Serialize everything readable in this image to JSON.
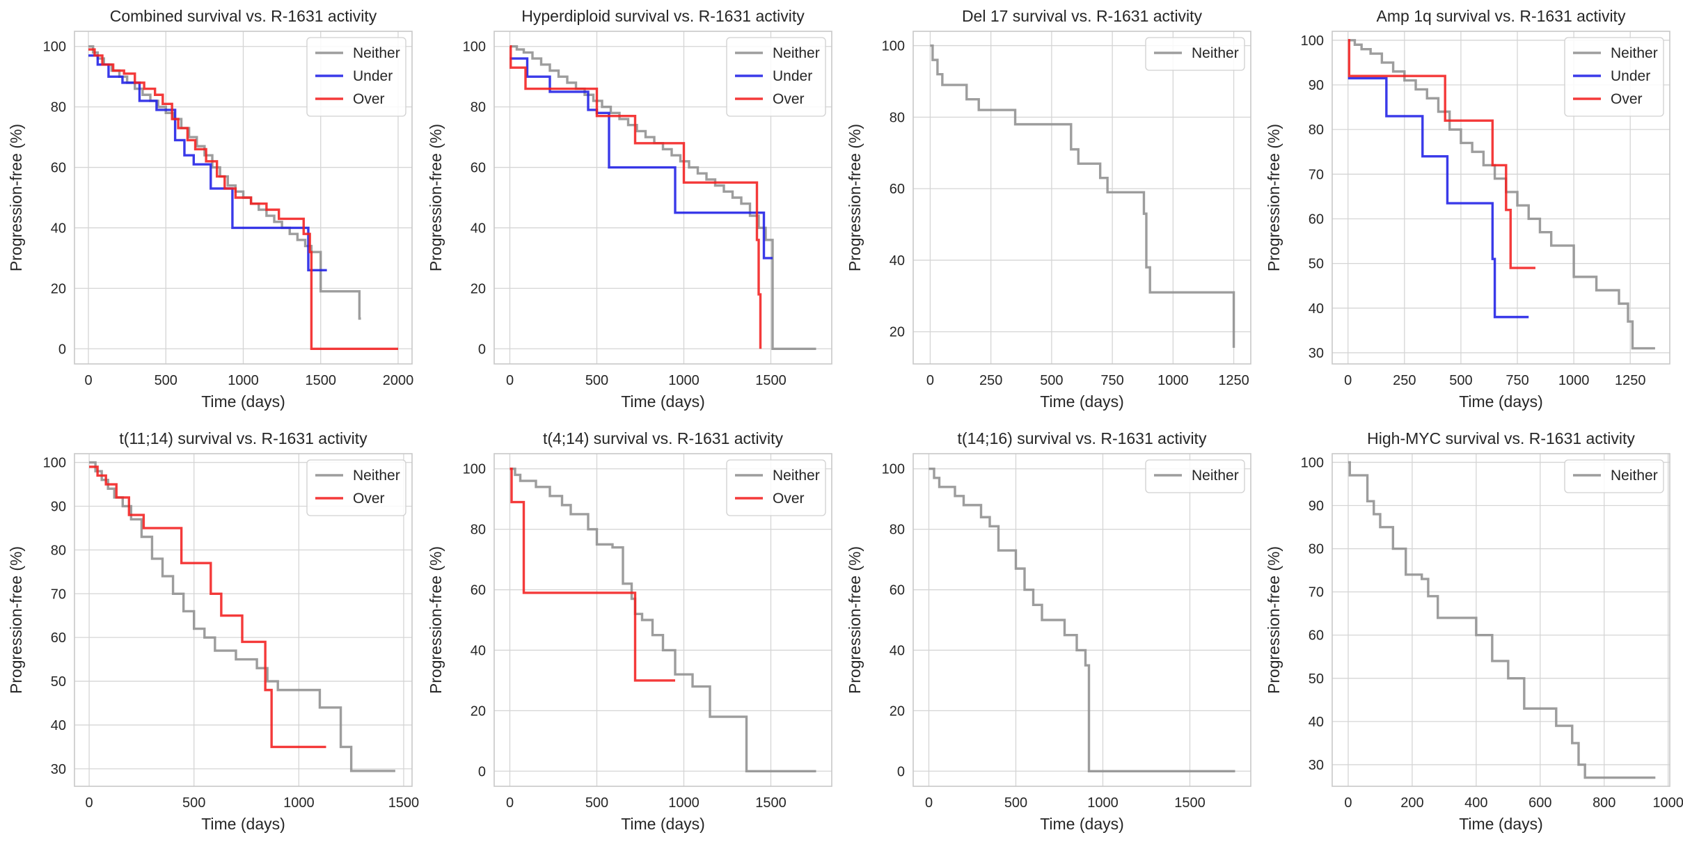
{
  "colors": {
    "neither": "#8f8f8f",
    "under": "#1f1fe6",
    "over": "#f21f1f",
    "grid": "#d5d5d5",
    "frame": "#c8c8c8"
  },
  "chart_data": [
    {
      "type": "line",
      "step": true,
      "title": "Combined survival vs. R-1631 activity",
      "xlabel": "Time (days)",
      "ylabel": "Progression-free (%)",
      "xlim": [
        -90,
        2090
      ],
      "ylim": [
        -5,
        105
      ],
      "xticks": [
        0,
        500,
        1000,
        1500,
        2000
      ],
      "yticks": [
        0,
        20,
        40,
        60,
        80,
        100
      ],
      "legend": "top-right",
      "series": [
        {
          "name": "Neither",
          "color": "#8f8f8f",
          "x": [
            0,
            30,
            60,
            100,
            150,
            200,
            250,
            300,
            350,
            400,
            450,
            500,
            550,
            600,
            650,
            700,
            750,
            800,
            850,
            900,
            950,
            1000,
            1050,
            1100,
            1150,
            1200,
            1250,
            1300,
            1350,
            1400,
            1440,
            1500,
            1600,
            1700,
            1750,
            1760
          ],
          "y": [
            100,
            98,
            96,
            94,
            92,
            90,
            88,
            86,
            84,
            82,
            80,
            78,
            76,
            73,
            70,
            67,
            64,
            60,
            57,
            54,
            52,
            50,
            48,
            46,
            44,
            42,
            40,
            38,
            36,
            34,
            32,
            19,
            19,
            19,
            10,
            10
          ]
        },
        {
          "name": "Under",
          "color": "#1f1fe6",
          "x": [
            0,
            60,
            130,
            220,
            330,
            440,
            560,
            620,
            680,
            790,
            930,
            1100,
            1200,
            1300,
            1420,
            1540
          ],
          "y": [
            97,
            94,
            90,
            88,
            82,
            79,
            69,
            64,
            61,
            53,
            40,
            40,
            40,
            40,
            26,
            26
          ]
        },
        {
          "name": "Over",
          "color": "#f21f1f",
          "x": [
            0,
            40,
            90,
            160,
            230,
            300,
            360,
            430,
            480,
            540,
            580,
            640,
            690,
            760,
            830,
            880,
            950,
            1050,
            1150,
            1230,
            1390,
            1430,
            1440,
            1600,
            1800,
            2000
          ],
          "y": [
            99,
            97,
            94,
            92,
            91,
            88,
            86,
            84,
            81,
            76,
            73,
            69,
            66,
            62,
            57,
            53,
            50,
            48,
            46,
            43,
            38,
            32,
            0,
            0,
            0,
            0
          ]
        }
      ]
    },
    {
      "type": "line",
      "step": true,
      "title": "Hyperdiploid survival vs. R-1631 activity",
      "xlabel": "Time (days)",
      "ylabel": "Progression-free (%)",
      "xlim": [
        -90,
        1850
      ],
      "ylim": [
        -5,
        105
      ],
      "xticks": [
        0,
        500,
        1000,
        1500
      ],
      "yticks": [
        0,
        20,
        40,
        60,
        80,
        100
      ],
      "legend": "top-right",
      "series": [
        {
          "name": "Neither",
          "color": "#8f8f8f",
          "x": [
            0,
            40,
            80,
            130,
            180,
            230,
            280,
            330,
            380,
            430,
            480,
            530,
            580,
            630,
            680,
            730,
            780,
            830,
            880,
            930,
            980,
            1030,
            1080,
            1130,
            1180,
            1230,
            1280,
            1330,
            1380,
            1430,
            1470,
            1510,
            1760
          ],
          "y": [
            100,
            99,
            98,
            96,
            94,
            92,
            90,
            88,
            86,
            84,
            82,
            80,
            78,
            76,
            74,
            72,
            70,
            68,
            66,
            64,
            62,
            60,
            58,
            56,
            54,
            52,
            50,
            48,
            44,
            40,
            36,
            0,
            0
          ]
        },
        {
          "name": "Under",
          "color": "#1f1fe6",
          "x": [
            0,
            100,
            230,
            450,
            500,
            570,
            800,
            950,
            1100,
            1250,
            1460,
            1510
          ],
          "y": [
            96,
            90,
            85,
            79,
            78,
            60,
            60,
            45,
            45,
            45,
            30,
            30
          ]
        },
        {
          "name": "Over",
          "color": "#f21f1f",
          "x": [
            0,
            5,
            90,
            430,
            500,
            720,
            1000,
            1230,
            1420,
            1430,
            1440
          ],
          "y": [
            100,
            93,
            86,
            86,
            77,
            68,
            55,
            55,
            36,
            18,
            0
          ]
        }
      ]
    },
    {
      "type": "line",
      "step": true,
      "title": "Del 17 survival vs. R-1631 activity",
      "xlabel": "Time (days)",
      "ylabel": "Progression-free (%)",
      "xlim": [
        -70,
        1320
      ],
      "ylim": [
        11,
        104
      ],
      "xticks": [
        0,
        250,
        500,
        750,
        1000,
        1250
      ],
      "yticks": [
        20,
        40,
        60,
        80,
        100
      ],
      "legend": "top-right",
      "series": [
        {
          "name": "Neither",
          "color": "#8f8f8f",
          "x": [
            0,
            10,
            30,
            50,
            150,
            200,
            350,
            580,
            610,
            700,
            730,
            880,
            890,
            905,
            1250
          ],
          "y": [
            100,
            96,
            92,
            89,
            85,
            82,
            78,
            71,
            67,
            63,
            59,
            53,
            38,
            31,
            15.5
          ]
        }
      ]
    },
    {
      "type": "line",
      "step": true,
      "title": "Amp 1q survival vs. R-1631 activity",
      "xlabel": "Time (days)",
      "ylabel": "Progression-free (%)",
      "xlim": [
        -70,
        1425
      ],
      "ylim": [
        27.5,
        102
      ],
      "xticks": [
        0,
        250,
        500,
        750,
        1000,
        1250
      ],
      "yticks": [
        30,
        40,
        50,
        60,
        70,
        80,
        90,
        100
      ],
      "legend": "top-right",
      "series": [
        {
          "name": "Neither",
          "color": "#8f8f8f",
          "x": [
            0,
            30,
            60,
            100,
            150,
            200,
            250,
            300,
            350,
            400,
            450,
            500,
            550,
            600,
            650,
            700,
            750,
            800,
            850,
            900,
            1000,
            1100,
            1200,
            1240,
            1260,
            1360
          ],
          "y": [
            100,
            99,
            98,
            97,
            95,
            93,
            91,
            89,
            87,
            84,
            80,
            77,
            75,
            72,
            69,
            66,
            63,
            60,
            57,
            54,
            47,
            44,
            41,
            37,
            31,
            31
          ]
        },
        {
          "name": "Under",
          "color": "#1f1fe6",
          "x": [
            0,
            170,
            330,
            440,
            640,
            650,
            800
          ],
          "y": [
            91.5,
            83,
            74,
            63.5,
            51,
            38,
            38
          ]
        },
        {
          "name": "Over",
          "color": "#f21f1f",
          "x": [
            0,
            5,
            430,
            640,
            700,
            720,
            830
          ],
          "y": [
            100,
            92,
            82,
            72,
            62,
            49,
            49
          ]
        }
      ]
    },
    {
      "type": "line",
      "step": true,
      "title": "t(11;14) survival vs. R-1631 activity",
      "xlabel": "Time (days)",
      "ylabel": "Progression-free (%)",
      "xlim": [
        -70,
        1540
      ],
      "ylim": [
        26,
        102
      ],
      "xticks": [
        0,
        500,
        1000,
        1500
      ],
      "yticks": [
        30,
        40,
        50,
        60,
        70,
        80,
        90,
        100
      ],
      "legend": "top-right",
      "series": [
        {
          "name": "Neither",
          "color": "#8f8f8f",
          "x": [
            0,
            30,
            60,
            90,
            120,
            160,
            200,
            250,
            300,
            350,
            400,
            450,
            500,
            550,
            600,
            700,
            800,
            850,
            900,
            1100,
            1200,
            1250,
            1460
          ],
          "y": [
            100,
            98,
            96,
            94,
            92,
            90,
            87,
            83,
            78,
            74,
            70,
            66,
            62,
            60,
            57,
            55,
            53,
            50,
            48,
            44,
            35,
            29.5,
            29.5
          ]
        },
        {
          "name": "Over",
          "color": "#f21f1f",
          "x": [
            0,
            40,
            80,
            130,
            190,
            260,
            440,
            580,
            630,
            730,
            840,
            870,
            1130
          ],
          "y": [
            99,
            97,
            95,
            92,
            88,
            85,
            77,
            70,
            65,
            59,
            48,
            35,
            35
          ]
        }
      ]
    },
    {
      "type": "line",
      "step": true,
      "title": "t(4;14) survival vs. R-1631 activity",
      "xlabel": "Time (days)",
      "ylabel": "Progression-free (%)",
      "xlim": [
        -90,
        1850
      ],
      "ylim": [
        -5,
        105
      ],
      "xticks": [
        0,
        500,
        1000,
        1500
      ],
      "yticks": [
        0,
        20,
        40,
        60,
        80,
        100
      ],
      "legend": "top-right",
      "series": [
        {
          "name": "Neither",
          "color": "#8f8f8f",
          "x": [
            0,
            30,
            60,
            150,
            230,
            300,
            350,
            450,
            500,
            590,
            650,
            700,
            720,
            760,
            820,
            880,
            950,
            1050,
            1150,
            1350,
            1360,
            1760
          ],
          "y": [
            100,
            98,
            96,
            94,
            91,
            88,
            85,
            80,
            75,
            74,
            62,
            57,
            52,
            50,
            45,
            40,
            32,
            28,
            18,
            18,
            0,
            0
          ]
        },
        {
          "name": "Over",
          "color": "#f21f1f",
          "x": [
            0,
            10,
            80,
            720,
            950
          ],
          "y": [
            100,
            89,
            59,
            30,
            30
          ]
        }
      ]
    },
    {
      "type": "line",
      "step": true,
      "title": "t(14;16) survival vs. R-1631 activity",
      "xlabel": "Time (days)",
      "ylabel": "Progression-free (%)",
      "xlim": [
        -90,
        1850
      ],
      "ylim": [
        -5,
        105
      ],
      "xticks": [
        0,
        500,
        1000,
        1500
      ],
      "yticks": [
        0,
        20,
        40,
        60,
        80,
        100
      ],
      "legend": "top-right",
      "series": [
        {
          "name": "Neither",
          "color": "#8f8f8f",
          "x": [
            0,
            30,
            60,
            150,
            200,
            300,
            350,
            400,
            500,
            550,
            600,
            650,
            780,
            850,
            900,
            920,
            1760
          ],
          "y": [
            100,
            97,
            94,
            91,
            88,
            84,
            81,
            73,
            67,
            60,
            55,
            50,
            45,
            40,
            35,
            0,
            0
          ]
        }
      ]
    },
    {
      "type": "line",
      "step": true,
      "title": "High-MYC survival vs. R-1631 activity",
      "xlabel": "Time (days)",
      "ylabel": "Progression-free (%)",
      "xlim": [
        -50,
        1005
      ],
      "ylim": [
        25,
        102
      ],
      "xticks": [
        0,
        200,
        400,
        600,
        800,
        1000
      ],
      "yticks": [
        30,
        40,
        50,
        60,
        70,
        80,
        90,
        100
      ],
      "legend": "top-right",
      "series": [
        {
          "name": "Neither",
          "color": "#8f8f8f",
          "x": [
            0,
            5,
            60,
            80,
            100,
            140,
            180,
            230,
            250,
            280,
            400,
            450,
            500,
            550,
            650,
            700,
            720,
            740,
            960
          ],
          "y": [
            100,
            97,
            91,
            88,
            85,
            80,
            74,
            73,
            69,
            64,
            60,
            54,
            50,
            43,
            39,
            35,
            30,
            27,
            27
          ]
        }
      ]
    }
  ]
}
